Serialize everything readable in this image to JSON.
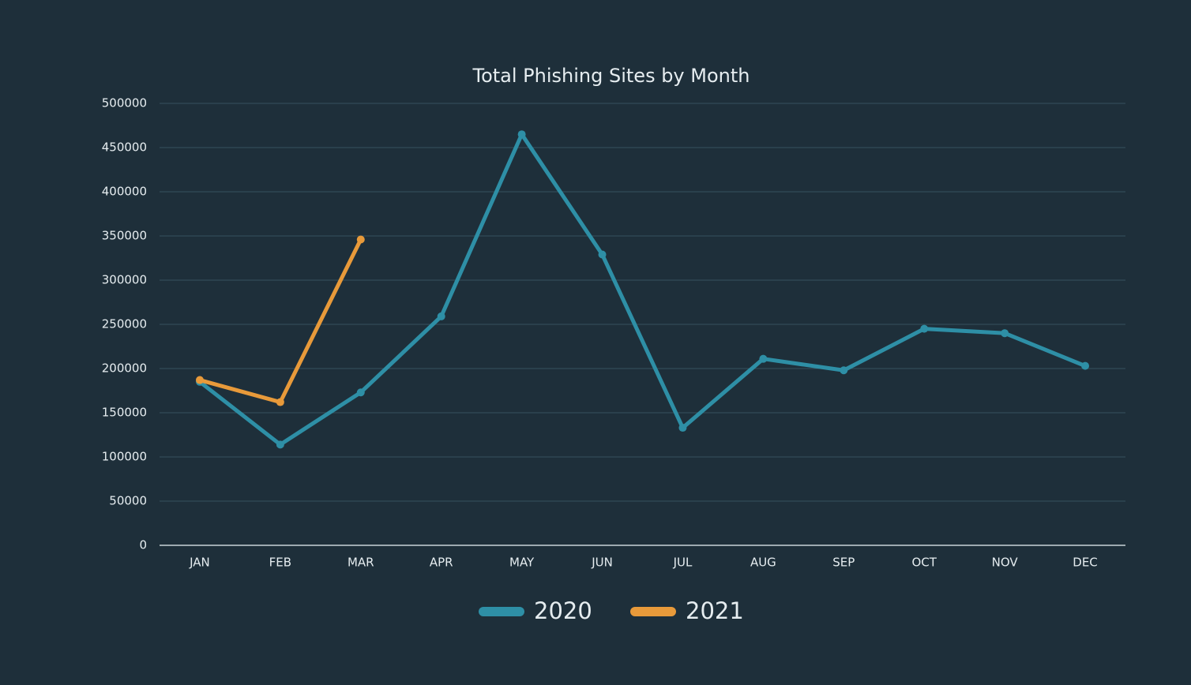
{
  "chart_data": {
    "type": "line",
    "title": "Total Phishing Sites by Month",
    "categories": [
      "JAN",
      "FEB",
      "MAR",
      "APR",
      "MAY",
      "JUN",
      "JUL",
      "AUG",
      "SEP",
      "OCT",
      "NOV",
      "DEC"
    ],
    "series": [
      {
        "name": "2020",
        "color": "#2e8fa6",
        "values": [
          185000,
          114000,
          173000,
          259000,
          465000,
          329000,
          133000,
          211000,
          198000,
          245000,
          240000,
          203000
        ]
      },
      {
        "name": "2021",
        "color": "#e89a3a",
        "values": [
          187000,
          162000,
          346000,
          null,
          null,
          null,
          null,
          null,
          null,
          null,
          null,
          null
        ]
      }
    ],
    "ylim": [
      0,
      500000
    ],
    "yticks": [
      0,
      50000,
      100000,
      150000,
      200000,
      250000,
      300000,
      350000,
      400000,
      450000,
      500000
    ],
    "grid": true,
    "legend": "bottom"
  }
}
